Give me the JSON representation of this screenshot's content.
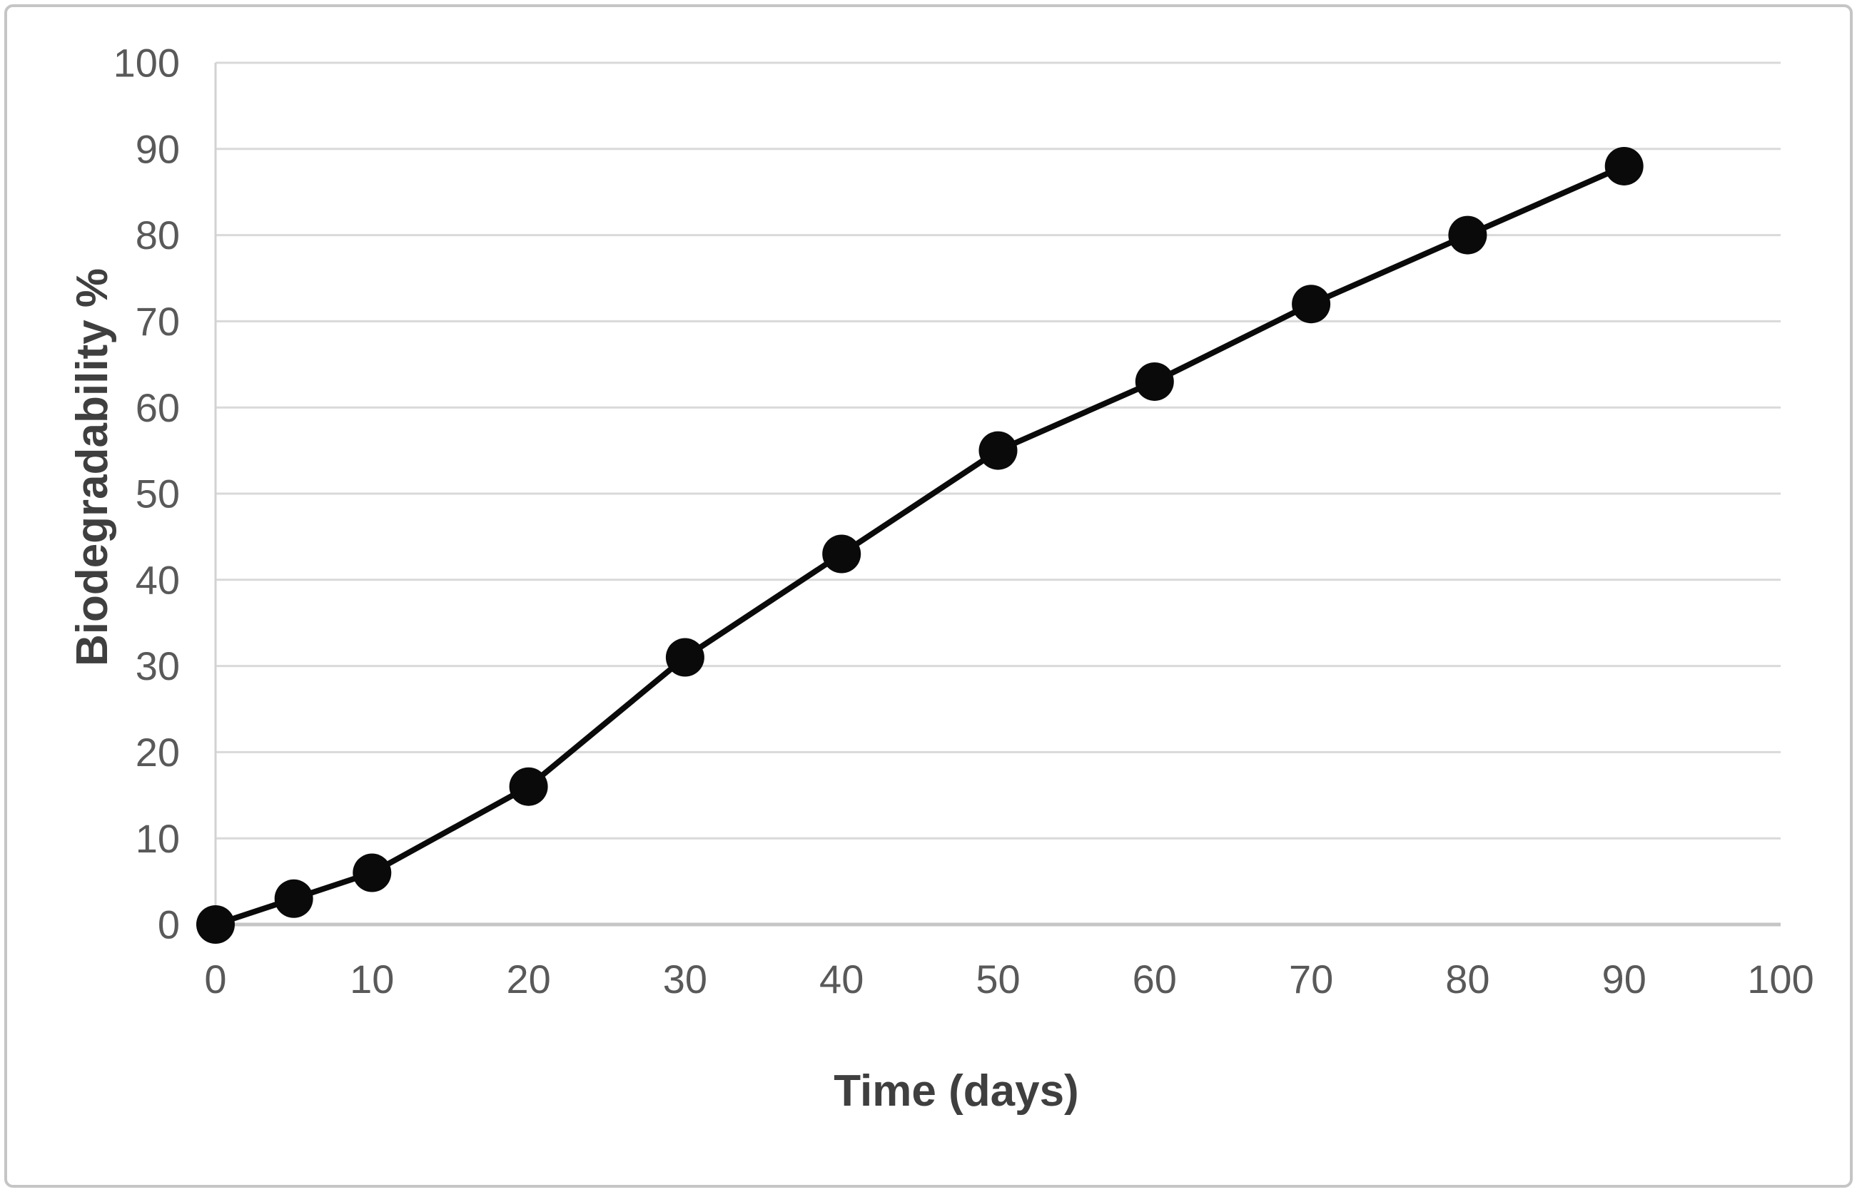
{
  "frame": {
    "background": "#ffffff",
    "border_color": "#c5c5c5"
  },
  "chart_data": {
    "type": "line",
    "title": "",
    "xlabel": "Time (days)",
    "ylabel": "Biodegradability %",
    "series": [
      {
        "name": "Biodegradability %",
        "x": [
          0,
          5,
          10,
          20,
          30,
          40,
          50,
          60,
          70,
          80,
          90
        ],
        "y": [
          0,
          3,
          6,
          16,
          31,
          43,
          55,
          63,
          72,
          80,
          88
        ]
      }
    ],
    "xlim": [
      0,
      100
    ],
    "ylim": [
      0,
      100
    ],
    "xticks": [
      0,
      10,
      20,
      30,
      40,
      50,
      60,
      70,
      80,
      90,
      100
    ],
    "yticks": [
      0,
      10,
      20,
      30,
      40,
      50,
      60,
      70,
      80,
      90,
      100
    ],
    "grid": "horizontal-only",
    "legend": "none",
    "line_color": "#0a0a0a",
    "marker": "circle",
    "marker_color": "#0a0a0a",
    "gridline_color": "#d9d9d9",
    "y_axis_line_color": "#d2d2d2",
    "x_axis_line_color": "#c6c6c6",
    "tick_label_color": "#595959",
    "axis_title_color": "#3f3f3f"
  }
}
